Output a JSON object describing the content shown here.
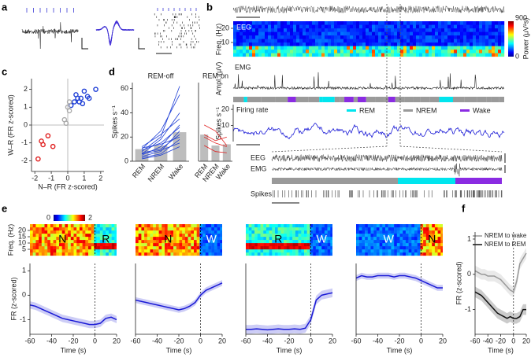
{
  "panel_labels": [
    "a",
    "b",
    "c",
    "d",
    "e",
    "f"
  ],
  "panel_b": {
    "eeg_label": "EEG",
    "freq_label": "Freq. (Hz)",
    "freq_lim": [
      0,
      25
    ],
    "freq_ticks": [
      10,
      20
    ],
    "power_label": "Power (μV²s)",
    "power_ticks": [
      0,
      900
    ],
    "emg_label": "EMG",
    "ampl_label": "Ampl. (μV)",
    "firing_label": "Firing rate",
    "rate_label": "Spikes s⁻¹",
    "rate_lim": [
      0,
      22
    ],
    "rate_ticks": [
      10,
      20
    ],
    "legend": [
      {
        "name": "REM",
        "color": "#00e5ee"
      },
      {
        "name": "NREM",
        "color": "#9a9a9a"
      },
      {
        "name": "Wake",
        "color": "#8a2be2"
      }
    ],
    "zoom_labels": [
      "EEG",
      "EMG",
      "Spikes"
    ]
  },
  "chart_data": [
    {
      "type": "scatter",
      "xlabel": "N–R (FR z-scored)",
      "ylabel": "W–R (FR z-scored)",
      "xlim": [
        -2.2,
        2.2
      ],
      "ylim": [
        -2.6,
        2.6
      ],
      "xticks": [
        -2,
        -1,
        0,
        1,
        2
      ],
      "yticks": [
        -2,
        -1,
        0,
        1,
        2
      ],
      "series": [
        {
          "color": "#1f3fd6",
          "x": [
            0.2,
            0.5,
            0.7,
            1.0,
            0.8,
            1.2,
            1.7,
            0.4,
            0.6,
            0.9,
            1.3
          ],
          "values": [
            1.1,
            1.7,
            1.3,
            1.9,
            1.5,
            1.6,
            2.0,
            1.3,
            1.5,
            1.2,
            1.5
          ]
        },
        {
          "color": "#aaaaaa",
          "x": [
            0.0,
            0.1,
            -0.2,
            -0.1,
            0.1
          ],
          "values": [
            1.0,
            0.8,
            0.3,
            0.1,
            1.3
          ]
        },
        {
          "color": "#e02020",
          "x": [
            -1.2,
            -1.5,
            -0.9,
            -1.8,
            -1.6
          ],
          "values": [
            -0.6,
            -1.1,
            -1.2,
            -1.9,
            -0.9
          ]
        }
      ]
    },
    {
      "type": "bar",
      "title": "REM-off",
      "ylabel": "Spikes s⁻¹",
      "categories": [
        "REM",
        "NREM",
        "Wake"
      ],
      "values": [
        10,
        13,
        24
      ],
      "color": "#bdbdbd",
      "line_color": "#1f3fd6",
      "ylim": [
        0,
        65
      ],
      "yticks": [
        0,
        20,
        40,
        60
      ],
      "lines": [
        [
          8,
          20,
          62
        ],
        [
          10,
          25,
          55
        ],
        [
          6,
          18,
          40
        ],
        [
          12,
          22,
          35
        ],
        [
          5,
          12,
          30
        ],
        [
          9,
          15,
          28
        ],
        [
          4,
          8,
          25
        ],
        [
          7,
          10,
          22
        ],
        [
          3,
          6,
          18
        ],
        [
          11,
          14,
          20
        ],
        [
          6,
          9,
          15
        ],
        [
          2,
          5,
          12
        ]
      ]
    },
    {
      "type": "bar",
      "title": "REM-on",
      "categories": [
        "REM",
        "NREM",
        "Wake"
      ],
      "values": [
        22,
        13,
        14
      ],
      "color": "#bdbdbd",
      "line_color": "#e02020",
      "ylim": [
        0,
        65
      ],
      "lines": [
        [
          30,
          25,
          13
        ],
        [
          22,
          17,
          20
        ],
        [
          13,
          8,
          7
        ],
        [
          20,
          15,
          12
        ]
      ]
    },
    {
      "type": "line",
      "heatmap_labels": [
        "N",
        "R"
      ],
      "freq_label": "Freq. (Hz)",
      "freq_lim": [
        0,
        25
      ],
      "freq_ticks": [
        5,
        10,
        15,
        20
      ],
      "colorbar_ticks": [
        0,
        2
      ],
      "xlabel": "Time (s)",
      "ylabel": "FR (z-scored)",
      "x": [
        -60,
        -55,
        -50,
        -45,
        -40,
        -35,
        -30,
        -25,
        -20,
        -15,
        -10,
        -5,
        0,
        5,
        10,
        15,
        20
      ],
      "xlim": [
        -60,
        20
      ],
      "xticks": [
        -60,
        -40,
        -20,
        0,
        20
      ],
      "ylim": [
        -1.6,
        1.3
      ],
      "yticks": [
        -1,
        0,
        1
      ],
      "series": [
        {
          "color": "#1a1ad6",
          "error": 0.15,
          "values": [
            -0.4,
            -0.45,
            -0.55,
            -0.65,
            -0.75,
            -0.85,
            -0.95,
            -1.0,
            -1.05,
            -1.1,
            -1.15,
            -1.2,
            -1.2,
            -1.15,
            -0.95,
            -0.9,
            -1.0
          ]
        }
      ]
    },
    {
      "type": "line",
      "heatmap_labels": [
        "N",
        "W"
      ],
      "xlabel": "Time (s)",
      "x": [
        -60,
        -55,
        -50,
        -45,
        -40,
        -35,
        -30,
        -25,
        -20,
        -15,
        -10,
        -5,
        0,
        5,
        10,
        15,
        20
      ],
      "xlim": [
        -60,
        20
      ],
      "xticks": [
        -60,
        -40,
        -20,
        0,
        20
      ],
      "ylim": [
        -1.6,
        1.3
      ],
      "series": [
        {
          "color": "#1a1ad6",
          "error": 0.12,
          "values": [
            -0.2,
            -0.25,
            -0.3,
            -0.35,
            -0.4,
            -0.45,
            -0.5,
            -0.55,
            -0.6,
            -0.55,
            -0.45,
            -0.3,
            0.0,
            0.2,
            0.3,
            0.4,
            0.5
          ]
        }
      ]
    },
    {
      "type": "line",
      "heatmap_labels": [
        "R",
        "W"
      ],
      "xlabel": "Time (s)",
      "x": [
        -60,
        -55,
        -50,
        -45,
        -40,
        -35,
        -30,
        -25,
        -20,
        -15,
        -10,
        -5,
        0,
        5,
        10,
        15,
        20
      ],
      "xlim": [
        -60,
        20
      ],
      "xticks": [
        -60,
        -40,
        -20,
        0,
        20
      ],
      "ylim": [
        -1.6,
        1.3
      ],
      "series": [
        {
          "color": "#1a1ad6",
          "error": 0.18,
          "values": [
            -1.4,
            -1.4,
            -1.38,
            -1.4,
            -1.42,
            -1.4,
            -1.38,
            -1.4,
            -1.4,
            -1.38,
            -1.4,
            -1.35,
            -1.0,
            -0.2,
            0.0,
            0.05,
            0.1
          ]
        }
      ]
    },
    {
      "type": "line",
      "heatmap_labels": [
        "W",
        "N"
      ],
      "xlabel": "Time (s)",
      "x": [
        -60,
        -55,
        -50,
        -45,
        -40,
        -35,
        -30,
        -25,
        -20,
        -15,
        -10,
        -5,
        0,
        5,
        10,
        15,
        20
      ],
      "xlim": [
        -60,
        20
      ],
      "xticks": [
        -60,
        -40,
        -20,
        0,
        20
      ],
      "ylim": [
        -1.6,
        1.3
      ],
      "series": [
        {
          "color": "#1a1ad6",
          "error": 0.12,
          "values": [
            0.7,
            0.8,
            0.75,
            0.75,
            0.8,
            0.8,
            0.8,
            0.75,
            0.8,
            0.8,
            0.75,
            0.7,
            0.6,
            0.5,
            0.4,
            0.3,
            0.3
          ]
        }
      ]
    },
    {
      "type": "line",
      "xlabel": "Time (s)",
      "ylabel": "FR (z-scored)",
      "x": [
        -60,
        -55,
        -50,
        -45,
        -40,
        -35,
        -30,
        -25,
        -20,
        -15,
        -10,
        -5,
        0,
        5,
        10,
        15,
        20
      ],
      "xlim": [
        -60,
        20
      ],
      "xticks": [
        -60,
        -40,
        -20,
        0,
        20
      ],
      "ylim": [
        -1.7,
        1.2
      ],
      "yticks": [
        -1,
        0,
        1
      ],
      "series": [
        {
          "name": "NREM to wake",
          "color": "#999999",
          "error": 0.15,
          "values": [
            0.1,
            0.05,
            0.0,
            0.0,
            -0.05,
            -0.05,
            -0.05,
            -0.1,
            -0.15,
            -0.25,
            -0.35,
            -0.45,
            -0.5,
            -0.2,
            0.3,
            0.45,
            0.6
          ]
        },
        {
          "name": "NREM to REM",
          "color": "#111111",
          "error": 0.15,
          "values": [
            -0.5,
            -0.55,
            -0.6,
            -0.7,
            -0.8,
            -0.9,
            -1.0,
            -1.1,
            -1.15,
            -1.2,
            -1.25,
            -1.2,
            -1.25,
            -1.25,
            -1.2,
            -1.0,
            -1.0
          ]
        }
      ]
    }
  ]
}
